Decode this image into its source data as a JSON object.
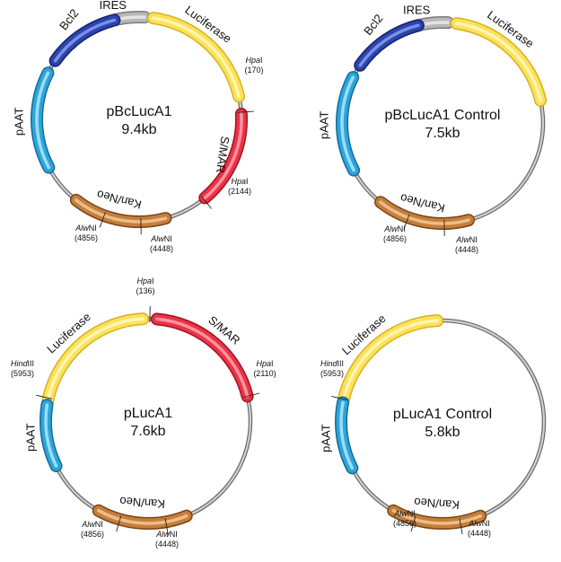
{
  "plasmids": [
    {
      "title": "pBcLucA1",
      "size": "9.4kb",
      "segments": [
        {
          "label": "IRES",
          "color": "gray"
        },
        {
          "label": "Luciferase",
          "color": "yellow"
        },
        {
          "label": "S/MAR",
          "color": "red"
        },
        {
          "label": "Kan/Neo",
          "color": "brown"
        },
        {
          "label": "pAAT",
          "color": "blue"
        },
        {
          "label": "Bcl2",
          "color": "navy"
        }
      ],
      "sites": [
        {
          "enzyme_italic": "Hpa",
          "enzyme_rest": "I",
          "position": "(170)"
        },
        {
          "enzyme_italic": "Hpa",
          "enzyme_rest": "I",
          "position": "(2144)"
        },
        {
          "enzyme_italic": "Alw",
          "enzyme_rest": "NI",
          "position": "(4448)"
        },
        {
          "enzyme_italic": "Alw",
          "enzyme_rest": "NI",
          "position": "(4856)"
        }
      ]
    },
    {
      "title": "pBcLucA1 Control",
      "size": "7.5kb",
      "segments": [
        {
          "label": "IRES",
          "color": "gray"
        },
        {
          "label": "Luciferase",
          "color": "yellow"
        },
        {
          "label": "Kan/Neo",
          "color": "brown"
        },
        {
          "label": "pAAT",
          "color": "blue"
        },
        {
          "label": "Bcl2",
          "color": "navy"
        }
      ],
      "sites": [
        {
          "enzyme_italic": "Alw",
          "enzyme_rest": "NI",
          "position": "(4448)"
        },
        {
          "enzyme_italic": "Alw",
          "enzyme_rest": "NI",
          "position": "(4856)"
        }
      ]
    },
    {
      "title": "pLucA1",
      "size": "7.6kb",
      "segments": [
        {
          "label": "Luciferase",
          "color": "yellow"
        },
        {
          "label": "S/MAR",
          "color": "red"
        },
        {
          "label": "Kan/Neo",
          "color": "brown"
        },
        {
          "label": "pAAT",
          "color": "blue"
        }
      ],
      "sites": [
        {
          "enzyme_italic": "Hpa",
          "enzyme_rest": "I",
          "position": "(136)"
        },
        {
          "enzyme_italic": "Hpa",
          "enzyme_rest": "I",
          "position": "(2110)"
        },
        {
          "enzyme_italic": "Alw",
          "enzyme_rest": "NI",
          "position": "(4448)"
        },
        {
          "enzyme_italic": "Alw",
          "enzyme_rest": "NI",
          "position": "(4856)"
        },
        {
          "enzyme_italic": "Hind",
          "enzyme_rest": "III",
          "position": "(5953)"
        }
      ]
    },
    {
      "title": "pLucA1 Control",
      "size": "5.8kb",
      "segments": [
        {
          "label": "Luciferase",
          "color": "yellow"
        },
        {
          "label": "Kan/Neo",
          "color": "brown"
        },
        {
          "label": "pAAT",
          "color": "blue"
        }
      ],
      "sites": [
        {
          "enzyme_italic": "Hind",
          "enzyme_rest": "III",
          "position": "(5953)"
        },
        {
          "enzyme_italic": "Alw",
          "enzyme_rest": "NI",
          "position": "(4448)"
        },
        {
          "enzyme_italic": "Alw",
          "enzyme_rest": "NI",
          "position": "(4856)"
        }
      ]
    }
  ],
  "palette": {
    "gray": {
      "light": "#e6e6e6",
      "mid": "#b8b8b8",
      "dark": "#7a7a7a"
    },
    "yellow": {
      "light": "#fff6b8",
      "mid": "#fde15a",
      "dark": "#d6b21e"
    },
    "red": {
      "light": "#ff9aa6",
      "mid": "#ec3346",
      "dark": "#a3101f"
    },
    "brown": {
      "light": "#f0c08c",
      "mid": "#c47f3c",
      "dark": "#7a4414"
    },
    "blue": {
      "light": "#9fe2fb",
      "mid": "#2fa4d9",
      "dark": "#136b9b"
    },
    "navy": {
      "light": "#7f95e8",
      "mid": "#2b44ae",
      "dark": "#14216a"
    }
  }
}
